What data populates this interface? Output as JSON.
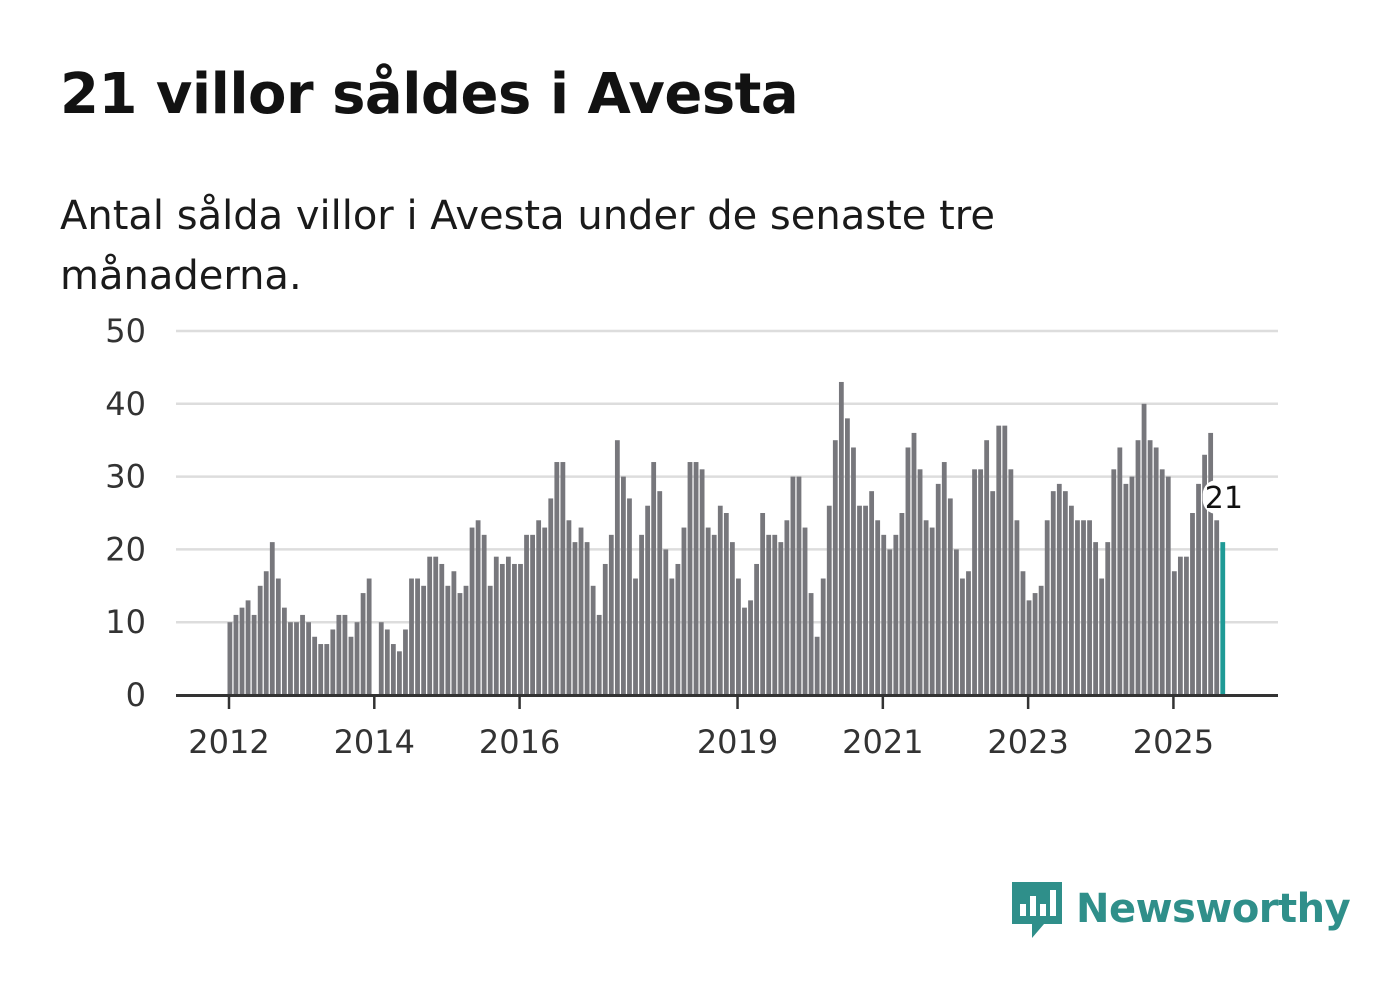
{
  "title": "21 villor såldes i Avesta",
  "subtitle": "Antal sålda villor i Avesta under de senaste tre månaderna.",
  "brand": {
    "name": "Newsworthy",
    "color": "#2f8f8a",
    "icon": "newsworthy-logo-icon"
  },
  "colors": {
    "bar": "#77777c",
    "highlight": "#1f9a96",
    "grid": "#dddddd",
    "axis": "#333333"
  },
  "chart_data": {
    "type": "bar",
    "title": "21 villor såldes i Avesta",
    "xlabel": "",
    "ylabel": "",
    "ylim": [
      0,
      50
    ],
    "yticks": [
      0,
      10,
      20,
      30,
      40,
      50
    ],
    "xticks": [
      "2012",
      "2014",
      "2016",
      "2019",
      "2021",
      "2023",
      "2025"
    ],
    "xtick_indices": [
      0,
      24,
      48,
      84,
      108,
      132,
      156
    ],
    "highlight_label": "21",
    "series": [
      {
        "name": "Antal sålda villor",
        "values": [
          10,
          11,
          12,
          13,
          11,
          15,
          17,
          21,
          16,
          12,
          10,
          10,
          11,
          10,
          8,
          7,
          7,
          9,
          11,
          11,
          8,
          10,
          14,
          16,
          0,
          10,
          9,
          7,
          6,
          9,
          16,
          16,
          15,
          19,
          19,
          18,
          15,
          17,
          14,
          15,
          23,
          24,
          22,
          15,
          19,
          18,
          19,
          18,
          18,
          22,
          22,
          24,
          23,
          27,
          32,
          32,
          24,
          21,
          23,
          21,
          15,
          11,
          18,
          22,
          35,
          30,
          27,
          16,
          22,
          26,
          32,
          28,
          20,
          16,
          18,
          23,
          32,
          32,
          31,
          23,
          22,
          26,
          25,
          21,
          16,
          12,
          13,
          18,
          25,
          22,
          22,
          21,
          24,
          30,
          30,
          23,
          14,
          8,
          16,
          26,
          35,
          43,
          38,
          34,
          26,
          26,
          28,
          24,
          22,
          20,
          22,
          25,
          34,
          36,
          31,
          24,
          23,
          29,
          32,
          27,
          20,
          16,
          17,
          31,
          31,
          35,
          28,
          37,
          37,
          31,
          24,
          17,
          13,
          14,
          15,
          24,
          28,
          29,
          28,
          26,
          24,
          24,
          24,
          21,
          16,
          21,
          31,
          34,
          29,
          30,
          35,
          40,
          35,
          34,
          31,
          30,
          17,
          19,
          19,
          25,
          29,
          33,
          36,
          24,
          21
        ]
      }
    ]
  }
}
